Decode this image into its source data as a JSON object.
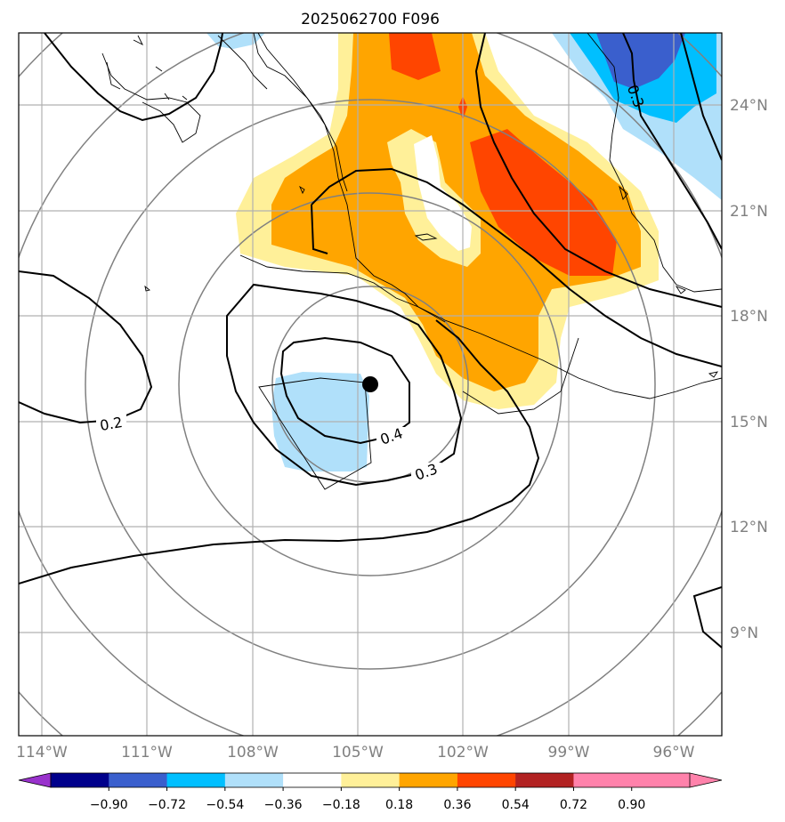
{
  "title": "2025062700 F096",
  "map": {
    "lon_ticks": [
      "114°W",
      "111°W",
      "108°W",
      "105°W",
      "102°W",
      "99°W",
      "96°W"
    ],
    "lat_ticks": [
      "24°N",
      "21°N",
      "18°N",
      "15°N",
      "12°N",
      "9°N"
    ],
    "contour_labels": [
      "0.2",
      "0.3",
      "0.4",
      "0.3"
    ],
    "center_marker": "storm-center-dot"
  },
  "colorbar": {
    "ticks": [
      "−0.90",
      "−0.72",
      "−0.54",
      "−0.36",
      "−0.18",
      "0.18",
      "0.36",
      "0.54",
      "0.72",
      "0.90"
    ],
    "colors": [
      "#9932cc",
      "#00008b",
      "#3a5fcd",
      "#00bfff",
      "#b0e0fa",
      "#ffffff",
      "#fff099",
      "#ffa500",
      "#ff4500",
      "#b22222",
      "#ff82ab",
      "#ff82ab"
    ]
  }
}
